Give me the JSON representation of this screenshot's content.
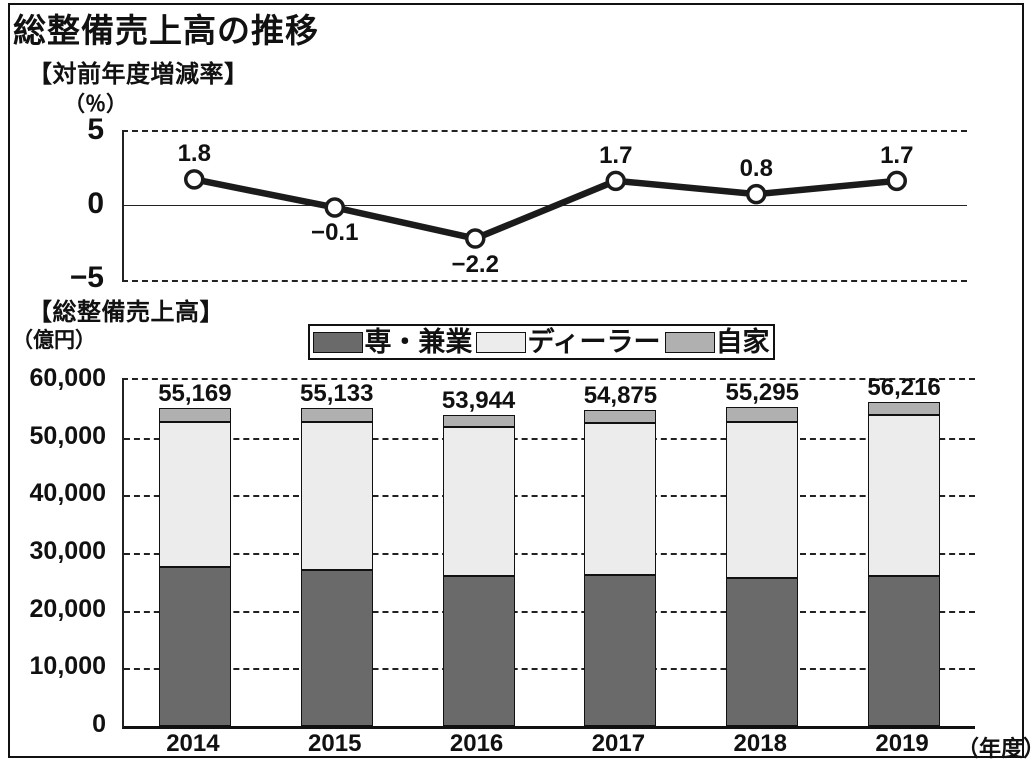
{
  "page": {
    "title": "総整備売上高の推移"
  },
  "rate_section": {
    "label": "【対前年度増減率】",
    "unit": "（％）"
  },
  "sales_section": {
    "label": "【総整備売上高】",
    "unit": "（億円）"
  },
  "colors": {
    "line": "#1b1b1b",
    "marker_fill": "#ffffff",
    "senkengyo": "#6a6a6a",
    "dealer": "#ececec",
    "jika": "#b0b0b0",
    "axis": "#222222"
  },
  "chart_data": [
    {
      "type": "line",
      "title": "対前年度増減率",
      "x": [
        "2014",
        "2015",
        "2016",
        "2017",
        "2018",
        "2019"
      ],
      "values": [
        1.8,
        -0.1,
        -2.2,
        1.7,
        0.8,
        1.7
      ],
      "point_labels": [
        "1.8",
        "−0.1",
        "−2.2",
        "1.7",
        "0.8",
        "1.7"
      ],
      "ylabel": "％",
      "ylim": [
        -5,
        5
      ],
      "yticks": [
        5,
        0,
        -5
      ],
      "ytick_labels": [
        "5",
        "0",
        "−5"
      ],
      "grid": "dashed top and bottom border, solid zero line",
      "legend_position": "none"
    },
    {
      "type": "bar",
      "stacked": true,
      "title": "総整備売上高",
      "categories": [
        "2014",
        "2015",
        "2016",
        "2017",
        "2018",
        "2019"
      ],
      "series": [
        {
          "name": "専・兼業",
          "color": "#6a6a6a",
          "values": [
            27500,
            27100,
            26100,
            26200,
            25700,
            26000
          ]
        },
        {
          "name": "ディーラー",
          "color": "#ececec",
          "values": [
            25200,
            25600,
            25700,
            26300,
            27100,
            28000
          ]
        },
        {
          "name": "自家",
          "color": "#b0b0b0",
          "values": [
            2469,
            2433,
            2144,
            2375,
            2495,
            2216
          ]
        }
      ],
      "totals": [
        55169,
        55133,
        53944,
        54875,
        55295,
        56216
      ],
      "total_labels": [
        "55,169",
        "55,133",
        "53,944",
        "54,875",
        "55,295",
        "56,216"
      ],
      "ylabel": "億円",
      "ylim": [
        0,
        60000
      ],
      "ytick_step": 10000,
      "ytick_labels": [
        "60,000",
        "50,000",
        "40,000",
        "30,000",
        "20,000",
        "10,000",
        "0"
      ],
      "xaxis_suffix": "（年度）",
      "grid": "dashed horizontal gridlines every 10,000",
      "legend_position": "top"
    }
  ]
}
